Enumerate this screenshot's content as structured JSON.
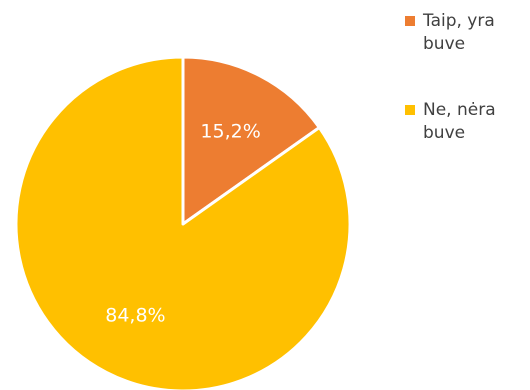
{
  "chart_data": {
    "type": "pie",
    "start_angle_deg": 0,
    "direction": "clockwise",
    "slices": [
      {
        "label": "Taip, yra buve",
        "value": 15.2,
        "display": "15,2%",
        "color": "#ED7D31"
      },
      {
        "label": "Ne, nėra buve",
        "value": 84.8,
        "display": "84,8%",
        "color": "#FFC000"
      }
    ],
    "legend_position": "right"
  }
}
